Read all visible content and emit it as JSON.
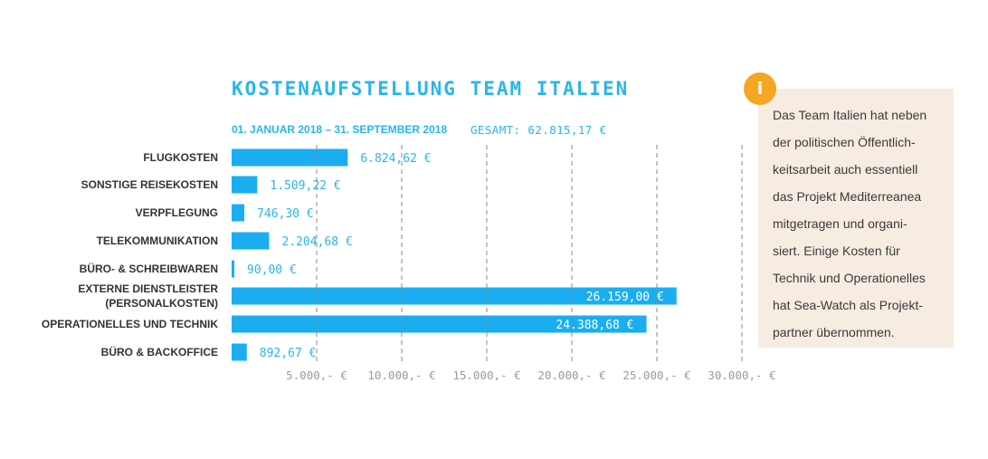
{
  "title": "KOSTENAUFSTELLUNG TEAM ITALIEN",
  "period": "01. JANUAR 2018 – 31. SEPTEMBER 2018",
  "total": "GESAMT: 62.815,17 €",
  "info": {
    "icon": "i",
    "lines": [
      "Das Team Italien hat neben",
      "der politischen Öffentlich-",
      "keitsarbeit auch essentiell",
      "das Projekt Mediterreanea",
      "mitgetragen und organi-",
      "siert. Einige Kosten für",
      "Technik und Operationelles",
      "hat Sea-Watch als Projekt-",
      "partner übernommen."
    ]
  },
  "chart_data": {
    "type": "bar",
    "orientation": "horizontal",
    "categories": [
      [
        "FLUGKOSTEN"
      ],
      [
        "SONSTIGE REISEKOSTEN"
      ],
      [
        "VERPFLEGUNG"
      ],
      [
        "TELEKOMMUNIKATION"
      ],
      [
        "BÜRO- & SCHREIBWAREN"
      ],
      [
        "EXTERNE DIENSTLEISTER",
        "(PERSONALKOSTEN)"
      ],
      [
        "OPERATIONELLES UND TECHNIK"
      ],
      [
        "BÜRO & BACKOFFICE"
      ]
    ],
    "values": [
      6824.62,
      1509.22,
      746.3,
      2204.68,
      90.0,
      26159.0,
      24388.68,
      892.67
    ],
    "value_labels": [
      "6.824,62 €",
      "1.509,22 €",
      "746,30 €",
      "2.204,68 €",
      "90,00 €",
      "26.159,00 €",
      "24.388,68 €",
      "892,67 €"
    ],
    "ticks": [
      5000,
      10000,
      15000,
      20000,
      25000,
      30000
    ],
    "tick_labels": [
      "5.000,- €",
      "10.000,- €",
      "15.000,- €",
      "20.000,- €",
      "25.000,- €",
      "30.000,- €"
    ],
    "xlim": [
      0,
      30000
    ],
    "grid": true,
    "bar_color": "#1aaef0",
    "label_color": "#29b6e8",
    "tick_color": "#9a9a9a",
    "category_color": "#333333"
  }
}
